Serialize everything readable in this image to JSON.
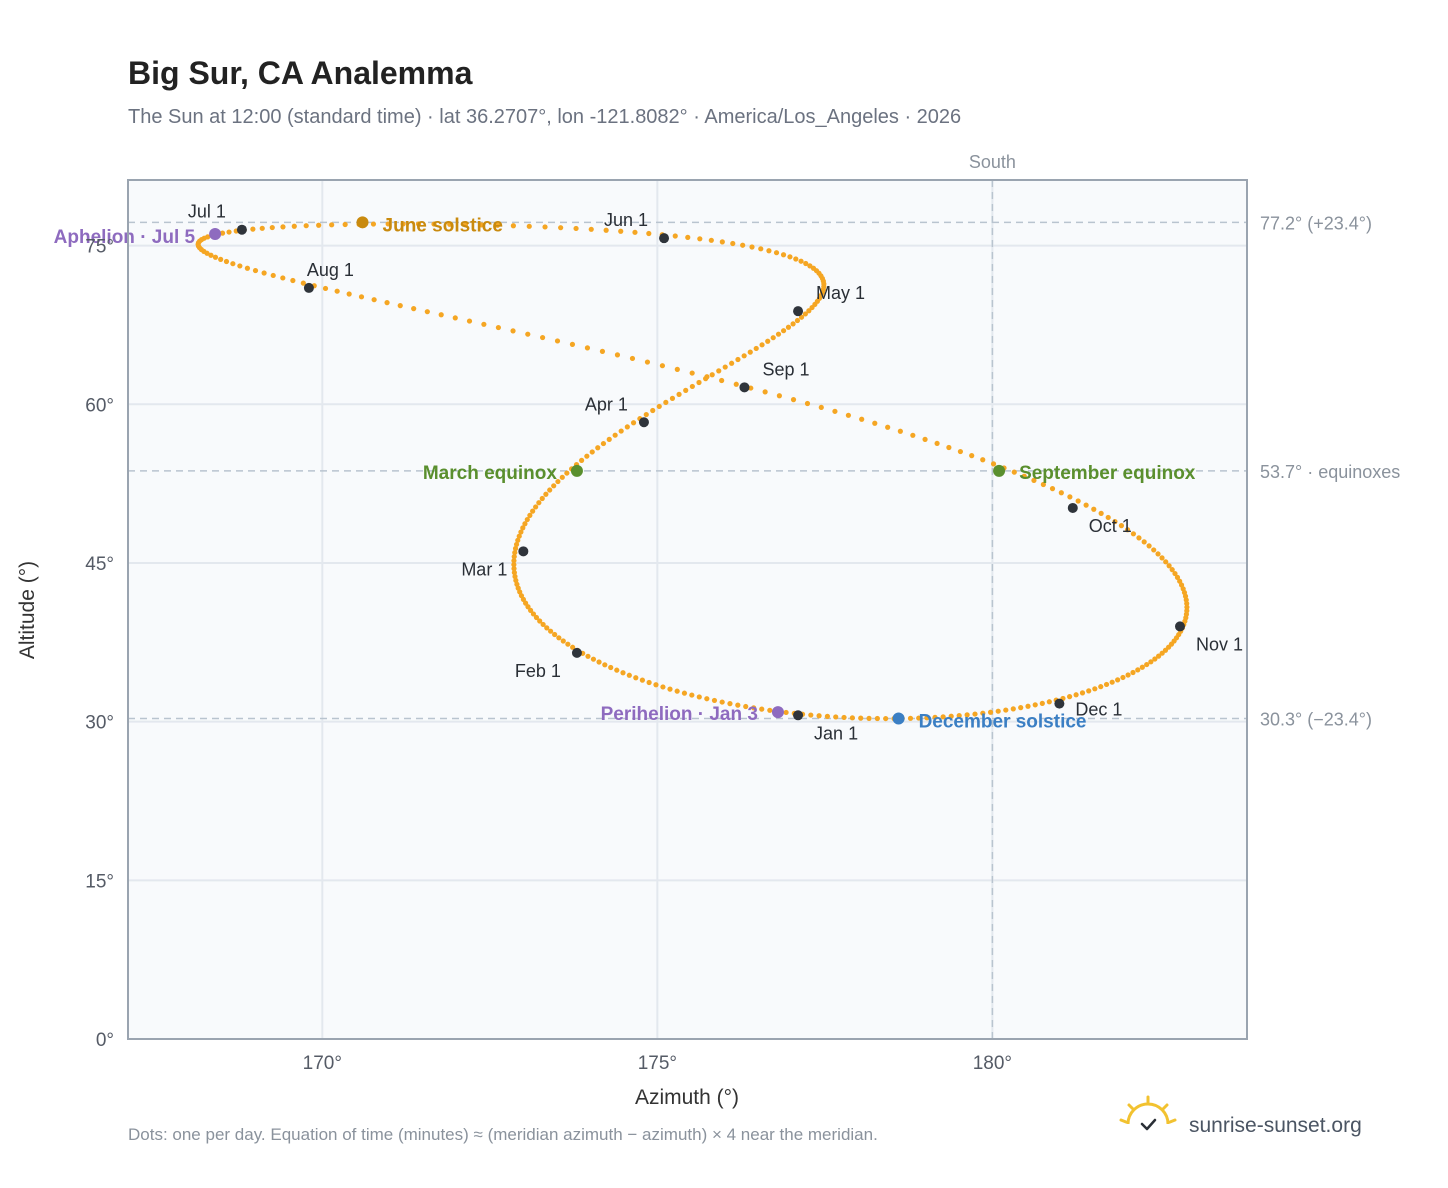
{
  "chart_data": {
    "type": "scatter",
    "title": "Big Sur, CA Analemma",
    "subtitle": "The Sun at 12:00 (standard time) · lat 36.2707°, lon -121.8082° · America/Los_Angeles · 2026",
    "xlabel": "Azimuth (°)",
    "ylabel": "Altitude (°)",
    "xlim": [
      167.1,
      183.8
    ],
    "ylim": [
      0,
      81.2
    ],
    "x_ticks": [
      170,
      175,
      180
    ],
    "x_tick_labels": [
      "170°",
      "175°",
      "180°"
    ],
    "y_ticks": [
      0,
      15,
      30,
      45,
      60,
      75
    ],
    "y_tick_labels": [
      "0°",
      "15°",
      "30°",
      "45°",
      "60°",
      "75°"
    ],
    "grid": true,
    "curve_color": "#f5a623",
    "reference_lines": {
      "vertical": {
        "x": 180,
        "label": "South"
      },
      "horizontal": [
        {
          "y": 77.2,
          "label": "77.2° (+23.4°)"
        },
        {
          "y": 53.7,
          "label": "53.7° · equinoxes"
        },
        {
          "y": 30.3,
          "label": "30.3° (−23.4°)"
        }
      ]
    },
    "month_markers": [
      {
        "label": "Jan 1",
        "azimuth": 177.1,
        "altitude": 30.6
      },
      {
        "label": "Feb 1",
        "azimuth": 173.8,
        "altitude": 36.5
      },
      {
        "label": "Mar 1",
        "azimuth": 173.0,
        "altitude": 46.1
      },
      {
        "label": "Apr 1",
        "azimuth": 174.8,
        "altitude": 58.3
      },
      {
        "label": "May 1",
        "azimuth": 177.1,
        "altitude": 68.8
      },
      {
        "label": "Jun 1",
        "azimuth": 175.1,
        "altitude": 75.7
      },
      {
        "label": "Jul 1",
        "azimuth": 168.8,
        "altitude": 76.5
      },
      {
        "label": "Aug 1",
        "azimuth": 169.8,
        "altitude": 71.0
      },
      {
        "label": "Sep 1",
        "azimuth": 176.3,
        "altitude": 61.6
      },
      {
        "label": "Oct 1",
        "azimuth": 181.2,
        "altitude": 50.2
      },
      {
        "label": "Nov 1",
        "azimuth": 182.8,
        "altitude": 39.0
      },
      {
        "label": "Dec 1",
        "azimuth": 181.0,
        "altitude": 31.7
      }
    ],
    "events": [
      {
        "label": "March equinox",
        "azimuth": 173.8,
        "altitude": 53.7,
        "color": "#5a8f2e"
      },
      {
        "label": "June solstice",
        "azimuth": 170.6,
        "altitude": 77.2,
        "color": "#c98a0e"
      },
      {
        "label": "September equinox",
        "azimuth": 180.1,
        "altitude": 53.7,
        "color": "#5a8f2e"
      },
      {
        "label": "December solstice",
        "azimuth": 178.6,
        "altitude": 30.3,
        "color": "#3b7fc4"
      },
      {
        "label": "Perihelion · Jan 3",
        "azimuth": 176.8,
        "altitude": 30.9,
        "color": "#8e6bbf"
      },
      {
        "label": "Aphelion · Jul 5",
        "azimuth": 168.4,
        "altitude": 76.1,
        "color": "#8e6bbf"
      }
    ],
    "footnote": "Dots: one per day. Equation of time (minutes) ≈ (meridian azimuth − azimuth) × 4 near the meridian."
  },
  "brand": {
    "name": "sunrise-sunset.org",
    "icon": "sun-logo-icon",
    "color": "#f2c230"
  }
}
